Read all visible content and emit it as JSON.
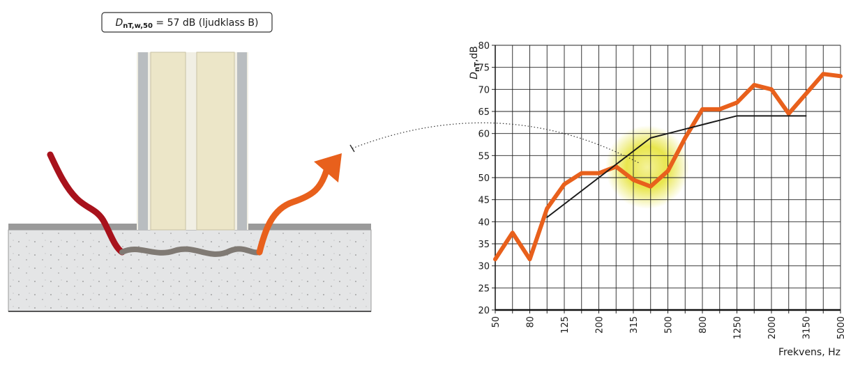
{
  "chart_data": {
    "type": "line",
    "annotation": {
      "symbol": "D",
      "subscript": "nT,w,50",
      "text": " = 57 dB (ljudklass B)"
    },
    "y_label": {
      "symbol": "D",
      "subscript": "nT",
      "text": ",dB"
    },
    "x_label": "Frekvens, Hz",
    "categories": [
      "50",
      null,
      "80",
      null,
      "125",
      null,
      "200",
      null,
      "315",
      null,
      "500",
      null,
      "800",
      null,
      "1250",
      null,
      "2000",
      null,
      "3150",
      null,
      "5000"
    ],
    "series": [
      {
        "color": "#e8601c",
        "values": [
          31.5,
          37.5,
          31.5,
          43,
          48.5,
          51,
          51,
          52.5,
          49.5,
          48,
          51.5,
          59,
          65.5,
          65.5,
          67,
          71,
          70,
          64.5,
          69,
          73.5,
          73
        ]
      },
      {
        "color": "#1a1a1a",
        "values": [
          null,
          null,
          null,
          41,
          44,
          47,
          50,
          53,
          56,
          59,
          60,
          61,
          62,
          63,
          64,
          64,
          64,
          64,
          64,
          null,
          null
        ]
      }
    ],
    "ylim": [
      20,
      80
    ],
    "yticks": [
      20,
      25,
      30,
      35,
      40,
      45,
      50,
      55,
      60,
      65,
      70,
      75,
      80
    ],
    "grid": true
  }
}
